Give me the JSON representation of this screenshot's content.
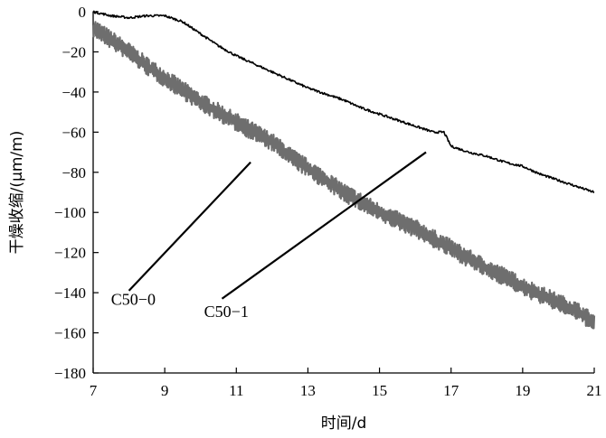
{
  "chart_data": {
    "type": "line",
    "title": "",
    "xlabel": "时间/d",
    "ylabel": "干燥收缩/(μm/m)",
    "xlim": [
      7,
      21
    ],
    "ylim": [
      -180,
      0
    ],
    "xticks": [
      7,
      9,
      11,
      13,
      15,
      17,
      19,
      21
    ],
    "yticks": [
      0,
      -20,
      -40,
      -60,
      -80,
      -100,
      -120,
      -140,
      -160,
      -180
    ],
    "xtick_labels": [
      "7",
      "9",
      "11",
      "13",
      "15",
      "17",
      "19",
      "21"
    ],
    "ytick_labels": [
      "0",
      "−20",
      "−40",
      "−60",
      "−80",
      "−100",
      "−120",
      "−140",
      "−160",
      "−180"
    ],
    "grid": false,
    "legend": "none (series labelled by leader lines)",
    "series": [
      {
        "name": "C50−0",
        "color": "#6e6e6e",
        "style": "noisy",
        "x": [
          7.0,
          7.5,
          8.0,
          8.5,
          9.0,
          9.5,
          10.0,
          10.5,
          11.0,
          11.5,
          12.0,
          12.5,
          13.0,
          13.5,
          14.0,
          14.5,
          15.0,
          15.5,
          16.0,
          16.5,
          17.0,
          17.5,
          18.0,
          18.5,
          19.0,
          19.5,
          20.0,
          20.5,
          21.0
        ],
        "y": [
          -8,
          -14,
          -20,
          -27,
          -33,
          -39,
          -45,
          -50,
          -55,
          -60,
          -65,
          -72,
          -78,
          -84,
          -90,
          -95,
          -100,
          -104,
          -108,
          -113,
          -118,
          -123,
          -128,
          -132,
          -137,
          -141,
          -145,
          -149,
          -155
        ]
      },
      {
        "name": "C50−1",
        "color": "#000000",
        "style": "smooth",
        "x": [
          7.0,
          7.5,
          8.0,
          8.5,
          9.0,
          9.5,
          10.0,
          10.5,
          11.0,
          11.5,
          12.0,
          12.5,
          13.0,
          13.5,
          14.0,
          14.5,
          15.0,
          15.5,
          16.0,
          16.5,
          16.8,
          17.0,
          17.5,
          18.0,
          18.5,
          19.0,
          19.5,
          20.0,
          20.5,
          21.0
        ],
        "y": [
          0,
          -2,
          -3,
          -2,
          -2,
          -5,
          -11,
          -17,
          -22,
          -26,
          -30,
          -34,
          -38,
          -41,
          -44,
          -48,
          -51,
          -54,
          -57,
          -60,
          -60,
          -67,
          -70,
          -72,
          -75,
          -77,
          -81,
          -84,
          -87,
          -90
        ]
      }
    ],
    "annotations": [
      {
        "text": "C50−0",
        "series": "C50−0",
        "label_at": [
          7.5,
          -146
        ],
        "leader_from": [
          8.0,
          -139
        ],
        "leader_to": [
          11.4,
          -75
        ]
      },
      {
        "text": "C50−1",
        "series": "C50−1",
        "label_at": [
          10.1,
          -152
        ],
        "leader_from": [
          10.6,
          -143
        ],
        "leader_to": [
          16.3,
          -70
        ]
      }
    ]
  }
}
